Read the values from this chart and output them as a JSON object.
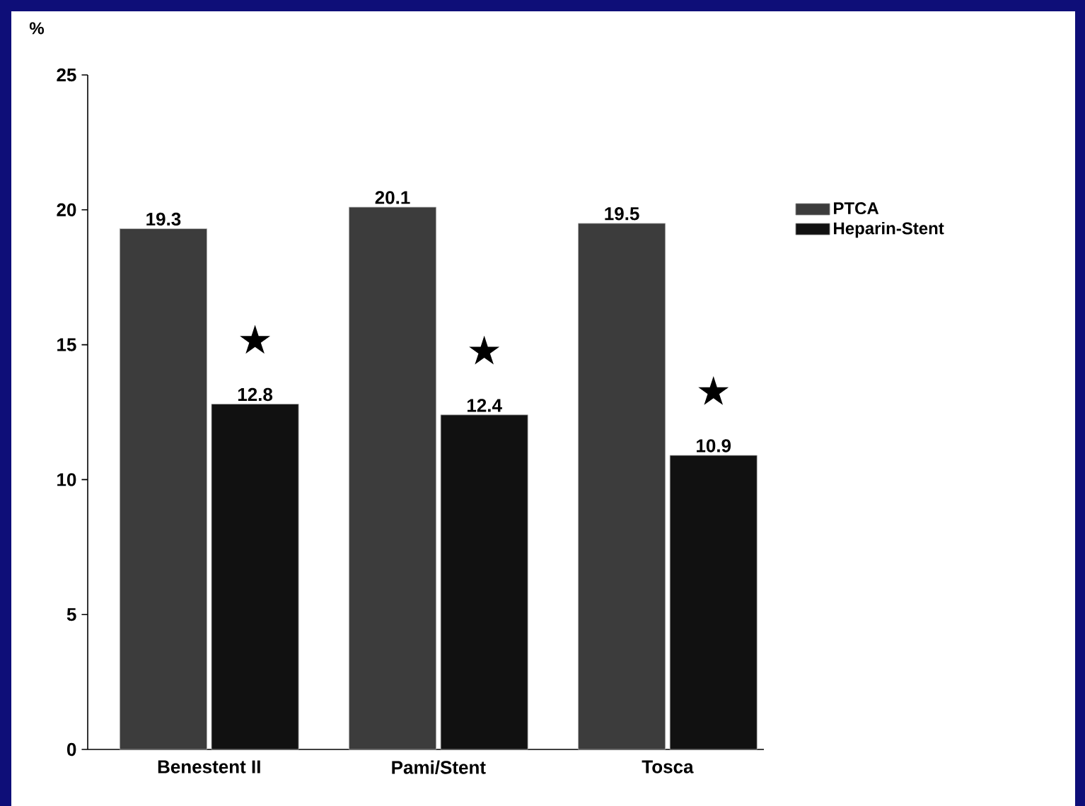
{
  "chart_data": {
    "type": "bar",
    "ylabel": "%",
    "categories": [
      "Benestent II",
      "Pami/Stent",
      "Tosca"
    ],
    "series": [
      {
        "name": "PTCA",
        "color": "#3c3c3c",
        "values": [
          19.3,
          20.1,
          19.5
        ]
      },
      {
        "name": "Heparin-Stent",
        "color": "#111111",
        "values": [
          12.8,
          12.4,
          10.9
        ]
      }
    ],
    "ylim": [
      0,
      25
    ],
    "yticks": [
      0,
      5,
      10,
      15,
      20,
      25
    ],
    "grid": false,
    "legend": "right",
    "data_labels": true,
    "annotations": [
      {
        "text": "★",
        "x": "Benestent II",
        "y": 15.2
      },
      {
        "text": "★",
        "x": "Pami/Stent",
        "y": 14.8
      },
      {
        "text": "★",
        "x": "Tosca",
        "y": 13.3
      }
    ]
  }
}
